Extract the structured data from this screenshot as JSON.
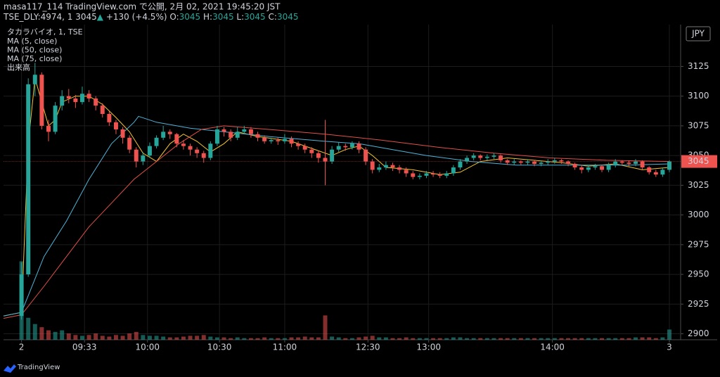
{
  "header": {
    "line1": "masa117_114 TradingView.com で公開, 2月 02, 2021 19:45:20 JST",
    "line2": [
      {
        "text": "TSE_DLY:4974, 1 3045",
        "color": "#d1d4dc"
      },
      {
        "text": "▲",
        "color": "#26a69a"
      },
      {
        "text": " +130 (+4.5%) O:",
        "color": "#d1d4dc"
      },
      {
        "text": "3045",
        "color": "#26a69a"
      },
      {
        "text": " H:",
        "color": "#d1d4dc"
      },
      {
        "text": "3045",
        "color": "#26a69a"
      },
      {
        "text": " L:",
        "color": "#d1d4dc"
      },
      {
        "text": "3045",
        "color": "#26a69a"
      },
      {
        "text": " C:",
        "color": "#d1d4dc"
      },
      {
        "text": "3045",
        "color": "#26a69a"
      }
    ]
  },
  "footer": {
    "brand": "TradingView"
  },
  "chart_data": {
    "type": "candlestick",
    "title": "タカラバイオ, 1, TSE",
    "currency": "JPY",
    "last_price": 3045,
    "up_color": "#26a69a",
    "down_color": "#ef5350",
    "grid": true,
    "xlim": [
      -8,
      293
    ],
    "ylim": [
      2895,
      3159
    ],
    "yticks": [
      2900,
      2925,
      2950,
      2975,
      3000,
      3025,
      3050,
      3075,
      3100,
      3125
    ],
    "xticks": [
      {
        "value": 0,
        "label": "2"
      },
      {
        "value": 28,
        "label": "09:33"
      },
      {
        "value": 56,
        "label": "10:00"
      },
      {
        "value": 88,
        "label": "10:30"
      },
      {
        "value": 117,
        "label": "11:00"
      },
      {
        "value": 154,
        "label": "12:30"
      },
      {
        "value": 181,
        "label": "13:00"
      },
      {
        "value": 236,
        "label": "14:00"
      },
      {
        "value": 288,
        "label": "3"
      }
    ],
    "x": [
      0,
      3,
      6,
      9,
      12,
      15,
      18,
      21,
      24,
      27,
      30,
      33,
      36,
      39,
      42,
      45,
      48,
      51,
      54,
      57,
      60,
      63,
      66,
      69,
      72,
      75,
      78,
      81,
      84,
      87,
      90,
      93,
      96,
      99,
      102,
      105,
      108,
      111,
      114,
      117,
      120,
      123,
      126,
      129,
      132,
      135,
      138,
      141,
      144,
      147,
      150,
      153,
      156,
      159,
      162,
      165,
      168,
      171,
      174,
      177,
      180,
      183,
      186,
      189,
      192,
      195,
      198,
      201,
      204,
      207,
      210,
      213,
      216,
      219,
      222,
      225,
      228,
      231,
      234,
      237,
      240,
      243,
      246,
      249,
      252,
      255,
      258,
      261,
      264,
      267,
      270,
      273,
      276,
      279,
      282,
      285,
      288
    ],
    "open": [
      2915,
      2950,
      3110,
      3118,
      3075,
      3070,
      3092,
      3100,
      3098,
      3095,
      3102,
      3098,
      3092,
      3085,
      3078,
      3072,
      3065,
      3055,
      3045,
      3050,
      3058,
      3065,
      3070,
      3068,
      3060,
      3058,
      3055,
      3052,
      3048,
      3060,
      3072,
      3070,
      3065,
      3070,
      3072,
      3068,
      3065,
      3062,
      3063,
      3062,
      3064,
      3060,
      3058,
      3055,
      3052,
      3048,
      3045,
      3055,
      3058,
      3057,
      3060,
      3055,
      3045,
      3038,
      3040,
      3042,
      3040,
      3038,
      3035,
      3032,
      3033,
      3035,
      3034,
      3033,
      3035,
      3040,
      3045,
      3048,
      3050,
      3048,
      3049,
      3050,
      3046,
      3044,
      3045,
      3044,
      3045,
      3043,
      3044,
      3045,
      3046,
      3045,
      3043,
      3040,
      3038,
      3040,
      3041,
      3038,
      3042,
      3045,
      3044,
      3043,
      3045,
      3040,
      3036,
      3034,
      3038
    ],
    "close": [
      2950,
      3110,
      3118,
      3075,
      3070,
      3092,
      3100,
      3098,
      3095,
      3102,
      3098,
      3092,
      3085,
      3078,
      3072,
      3065,
      3055,
      3045,
      3050,
      3058,
      3065,
      3070,
      3068,
      3060,
      3058,
      3055,
      3052,
      3048,
      3060,
      3072,
      3070,
      3065,
      3070,
      3072,
      3068,
      3065,
      3062,
      3063,
      3062,
      3064,
      3060,
      3058,
      3055,
      3052,
      3048,
      3045,
      3055,
      3058,
      3057,
      3060,
      3055,
      3045,
      3038,
      3040,
      3042,
      3040,
      3038,
      3035,
      3032,
      3033,
      3035,
      3034,
      3033,
      3035,
      3040,
      3045,
      3048,
      3050,
      3048,
      3049,
      3050,
      3046,
      3044,
      3045,
      3044,
      3045,
      3043,
      3044,
      3045,
      3046,
      3045,
      3043,
      3040,
      3038,
      3040,
      3041,
      3038,
      3042,
      3045,
      3044,
      3043,
      3045,
      3040,
      3036,
      3034,
      3038,
      3045
    ],
    "high": [
      2960,
      3115,
      3128,
      3120,
      3080,
      3095,
      3105,
      3106,
      3101,
      3108,
      3105,
      3100,
      3094,
      3087,
      3080,
      3074,
      3067,
      3057,
      3053,
      3061,
      3067,
      3075,
      3072,
      3069,
      3063,
      3060,
      3057,
      3054,
      3062,
      3075,
      3074,
      3072,
      3074,
      3075,
      3074,
      3070,
      3067,
      3065,
      3065,
      3068,
      3066,
      3062,
      3060,
      3057,
      3054,
      3080,
      3058,
      3061,
      3060,
      3062,
      3062,
      3057,
      3047,
      3043,
      3045,
      3044,
      3042,
      3040,
      3037,
      3035,
      3037,
      3037,
      3036,
      3037,
      3042,
      3047,
      3050,
      3052,
      3051,
      3051,
      3052,
      3051,
      3047,
      3047,
      3046,
      3047,
      3046,
      3046,
      3047,
      3048,
      3047,
      3046,
      3044,
      3042,
      3042,
      3043,
      3042,
      3044,
      3047,
      3046,
      3046,
      3047,
      3046,
      3041,
      3038,
      3040,
      3046
    ],
    "low": [
      2912,
      2948,
      3100,
      3072,
      3062,
      3068,
      3088,
      3094,
      3090,
      3093,
      3095,
      3088,
      3082,
      3075,
      3068,
      3060,
      3052,
      3040,
      3042,
      3048,
      3056,
      3063,
      3064,
      3057,
      3055,
      3050,
      3048,
      3044,
      3046,
      3058,
      3066,
      3062,
      3063,
      3068,
      3065,
      3062,
      3060,
      3060,
      3059,
      3060,
      3057,
      3055,
      3052,
      3048,
      3044,
      3025,
      3043,
      3053,
      3054,
      3055,
      3052,
      3042,
      3035,
      3036,
      3038,
      3037,
      3035,
      3032,
      3030,
      3030,
      3031,
      3032,
      3031,
      3031,
      3033,
      3038,
      3043,
      3046,
      3046,
      3046,
      3047,
      3044,
      3042,
      3042,
      3042,
      3042,
      3041,
      3041,
      3042,
      3043,
      3043,
      3041,
      3038,
      3035,
      3036,
      3038,
      3036,
      3036,
      3040,
      3042,
      3041,
      3041,
      3038,
      3034,
      3032,
      3032,
      3036
    ],
    "moving_averages": [
      {
        "name": "MA (5, close)",
        "color": "#f4c430",
        "x": [
          -8,
          0,
          3,
          6,
          9,
          12,
          15,
          18,
          24,
          30,
          36,
          42,
          48,
          54,
          60,
          66,
          72,
          78,
          84,
          90,
          96,
          105,
          120,
          132,
          138,
          144,
          150,
          156,
          162,
          174,
          186,
          195,
          204,
          216,
          240,
          252,
          264,
          276,
          288
        ],
        "values": [
          2915,
          2918,
          3060,
          3115,
          3095,
          3075,
          3080,
          3095,
          3100,
          3100,
          3093,
          3082,
          3070,
          3052,
          3045,
          3060,
          3068,
          3062,
          3053,
          3060,
          3070,
          3066,
          3062,
          3054,
          3050,
          3055,
          3058,
          3050,
          3040,
          3038,
          3034,
          3036,
          3045,
          3048,
          3044,
          3041,
          3043,
          3038,
          3040
        ]
      },
      {
        "name": "MA (50, close)",
        "color": "#4fb3d9",
        "x": [
          -8,
          0,
          10,
          20,
          30,
          40,
          50,
          52,
          60,
          75,
          90,
          110,
          135,
          150,
          165,
          180,
          200,
          220,
          250,
          270,
          288
        ],
        "values": [
          2915,
          2918,
          2965,
          2995,
          3030,
          3060,
          3078,
          3083,
          3078,
          3073,
          3070,
          3066,
          3062,
          3060,
          3055,
          3050,
          3045,
          3042,
          3042,
          3042,
          3043
        ]
      },
      {
        "name": "MA (75, close)",
        "color": "#e0504a",
        "x": [
          -8,
          0,
          10,
          20,
          30,
          40,
          50,
          60,
          70,
          80,
          90,
          110,
          135,
          160,
          185,
          210,
          235,
          260,
          288
        ],
        "values": [
          2913,
          2916,
          2940,
          2965,
          2990,
          3010,
          3030,
          3045,
          3060,
          3072,
          3075,
          3072,
          3068,
          3063,
          3057,
          3052,
          3048,
          3046,
          3045
        ]
      }
    ],
    "volume": {
      "name": "出来高",
      "ylim": [
        0,
        400
      ],
      "values": [
        100,
        28,
        20,
        16,
        12,
        10,
        12,
        8,
        6,
        5,
        6,
        8,
        5,
        4,
        6,
        5,
        8,
        10,
        6,
        5,
        5,
        4,
        3,
        3,
        4,
        5,
        5,
        6,
        4,
        3,
        3,
        2,
        3,
        2,
        2,
        2,
        3,
        2,
        2,
        2,
        3,
        3,
        4,
        3,
        3,
        31,
        4,
        3,
        2,
        2,
        3,
        4,
        5,
        3,
        3,
        2,
        2,
        3,
        2,
        2,
        2,
        2,
        2,
        2,
        3,
        3,
        2,
        2,
        2,
        2,
        2,
        2,
        2,
        2,
        2,
        2,
        2,
        2,
        2,
        2,
        2,
        2,
        2,
        2,
        2,
        2,
        2,
        2,
        2,
        2,
        2,
        3,
        3,
        3,
        2,
        3,
        13
      ]
    }
  }
}
